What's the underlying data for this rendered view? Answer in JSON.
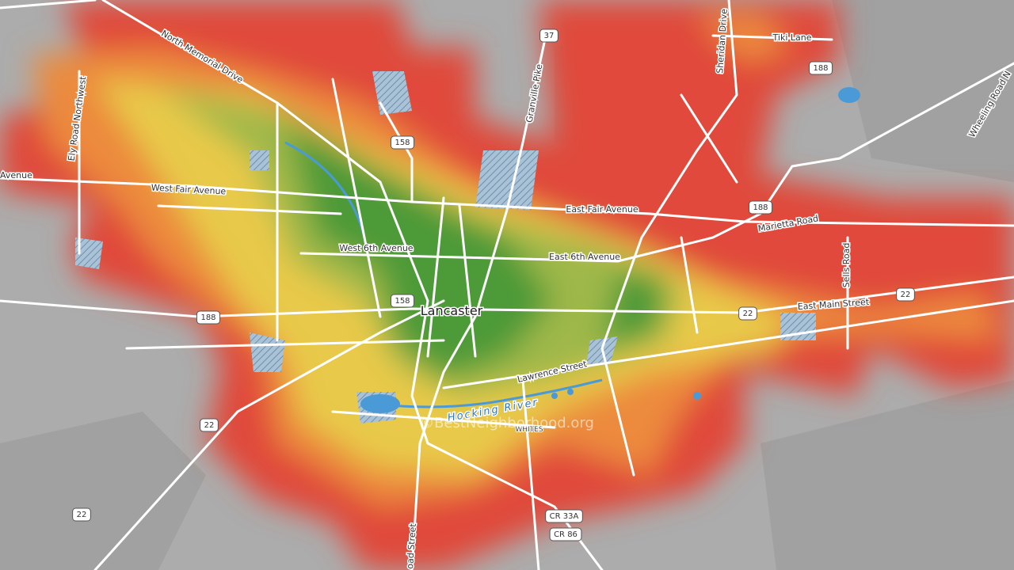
{
  "place_label": "Lancaster",
  "watermark": "©BestNeighborhood.org",
  "area_label": "WHITES",
  "river_label": "Hocking River",
  "road_labels": [
    "North Memorial Drive",
    "Ely Road Northwest",
    "Avenue",
    "West Fair Avenue",
    "West 6th Avenue",
    "East 6th Avenue",
    "East Fair Avenue",
    "Granville Pike",
    "Sheridan Drive",
    "Tiki Lane",
    "Wheeling Road N",
    "Marietta Road",
    "Sells Road",
    "East Main Street",
    "Lawrence Street",
    "oad Street"
  ],
  "shields": [
    "37",
    "158",
    "158",
    "188",
    "188",
    "188",
    "22",
    "22",
    "22",
    "22",
    "CR 33A",
    "CR 86"
  ]
}
